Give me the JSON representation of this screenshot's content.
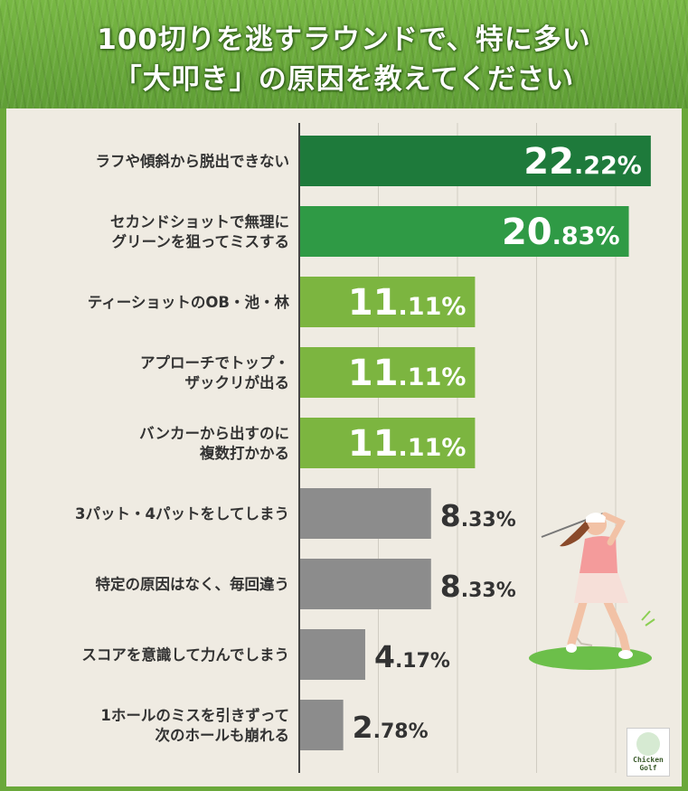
{
  "title": {
    "line1": "100切りを逃すラウンドで、特に多い",
    "line2": "「大叩き」の原因を教えてください"
  },
  "logo": {
    "line1": "Chicken",
    "line2": "Golf"
  },
  "chart_data": {
    "type": "bar",
    "orientation": "horizontal",
    "xlim": [
      0,
      25
    ],
    "grid": true,
    "categories": [
      [
        "ラフや傾斜から脱出できない"
      ],
      [
        "セカンドショットで無理に",
        "グリーンを狙ってミスする"
      ],
      [
        "ティーショットのOB・池・林"
      ],
      [
        "アプローチでトップ・",
        "ザックリが出る"
      ],
      [
        "バンカーから出すのに",
        "複数打かかる"
      ],
      [
        "3パット・4パットをしてしまう"
      ],
      [
        "特定の原因はなく、毎回違う"
      ],
      [
        "スコアを意識して力んでしまう"
      ],
      [
        "1ホールのミスを引きずって",
        "次のホールも崩れる"
      ]
    ],
    "values": [
      22.22,
      20.83,
      11.11,
      11.11,
      11.11,
      8.33,
      8.33,
      4.17,
      2.78
    ],
    "value_labels": [
      [
        "22",
        ".22%"
      ],
      [
        "20",
        ".83%"
      ],
      [
        "11",
        ".11%"
      ],
      [
        "11",
        ".11%"
      ],
      [
        "11",
        ".11%"
      ],
      [
        "8",
        ".33%"
      ],
      [
        "8",
        ".33%"
      ],
      [
        "4",
        ".17%"
      ],
      [
        "2",
        ".78%"
      ]
    ],
    "bar_colors": [
      "#1e7a3b",
      "#2f9a45",
      "#7cb540",
      "#7cb540",
      "#7cb540",
      "#8c8c8c",
      "#8c8c8c",
      "#8c8c8c",
      "#8c8c8c"
    ],
    "label_inside": [
      true,
      true,
      true,
      true,
      true,
      false,
      false,
      false,
      false
    ]
  },
  "colors": {
    "inside_text": "#ffffff",
    "outside_text": "#333333",
    "axis": "#444444",
    "grid": "#d0ccc2"
  }
}
